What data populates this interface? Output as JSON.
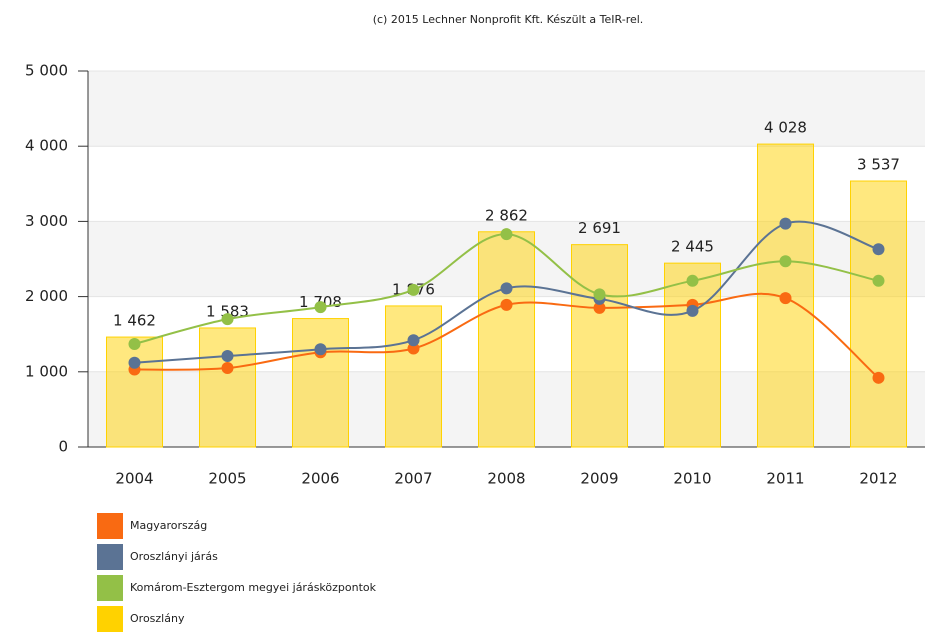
{
  "chart_data": {
    "type": "bar_line",
    "title": "(c) 2015 Lechner Nonprofit Kft. Készült a TeIR-rel.",
    "categories": [
      "2004",
      "2005",
      "2006",
      "2007",
      "2008",
      "2009",
      "2010",
      "2011",
      "2012"
    ],
    "series": [
      {
        "name": "Magyarország",
        "color": "#f96a12",
        "type": "line",
        "values": [
          1030,
          1050,
          1260,
          1310,
          1890,
          1850,
          1890,
          1980,
          920
        ]
      },
      {
        "name": "Oroszlányi járás",
        "color": "#5b7394",
        "type": "line",
        "values": [
          1120,
          1210,
          1300,
          1420,
          2110,
          1970,
          1810,
          2970,
          2630
        ]
      },
      {
        "name": "Komárom-Esztergom megyei járásközpontok",
        "color": "#93c047",
        "type": "line",
        "values": [
          1370,
          1700,
          1860,
          2090,
          2830,
          2030,
          2210,
          2470,
          2210
        ]
      },
      {
        "name": "Oroszlány",
        "color": "#ffd200",
        "type": "bar",
        "values": [
          1462,
          1583,
          1708,
          1876,
          2862,
          2691,
          2445,
          4028,
          3537
        ],
        "value_labels": [
          "1 462",
          "1 583",
          "1 708",
          "1 876",
          "2 862",
          "2 691",
          "2 445",
          "4 028",
          "3 537"
        ]
      }
    ],
    "ylim": [
      0,
      5000
    ],
    "yticks": [
      0,
      {
        "value": 1000,
        "label": "1 000"
      },
      {
        "value": 2000,
        "label": "2 000"
      },
      {
        "value": 3000,
        "label": "3 000"
      },
      {
        "value": 4000,
        "label": "4 000"
      },
      {
        "value": 5000,
        "label": "5 000"
      }
    ],
    "grid": true
  }
}
